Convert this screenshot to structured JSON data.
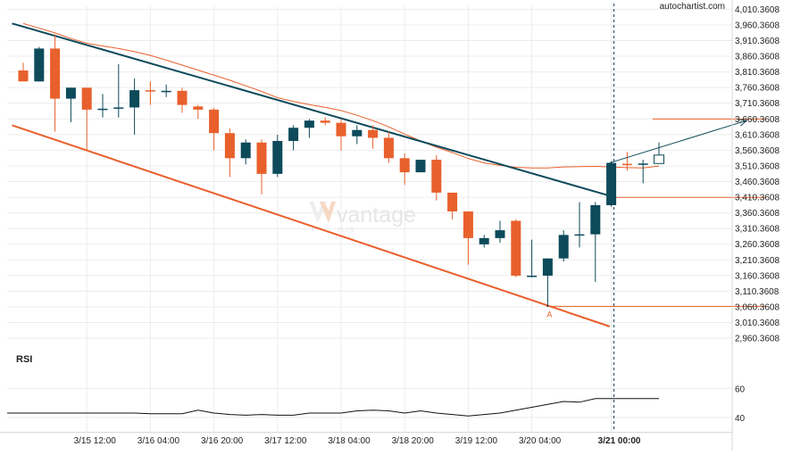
{
  "brand": {
    "site": "autochartist.com",
    "watermark": "vantage",
    "watermark_sub": "PLUS"
  },
  "colors": {
    "bull": "#0d4a5a",
    "bear": "#e8602c",
    "ma": "#e8602c",
    "trend_upper": "#0d4a5a",
    "trend_lower": "#e8602c",
    "grid": "#ececec",
    "text": "#222222"
  },
  "chart_data": {
    "type": "candlestick",
    "y_ticks": [
      "4,010.3608",
      "3,960.3608",
      "3,910.3608",
      "3,860.3608",
      "3,810.3608",
      "3,760.3608",
      "3,710.3608",
      "3,660.3608",
      "3,610.3608",
      "3,560.3608",
      "3,510.3608",
      "3,460.3608",
      "3,410.3608",
      "3,360.3608",
      "3,310.3608",
      "3,260.3608",
      "3,210.3608",
      "3,160.3608",
      "3,110.3608",
      "3,060.3608",
      "3,010.3608",
      "2,960.3608"
    ],
    "ylim": [
      2935,
      4020
    ],
    "x_ticks": [
      {
        "label": "3/15 12:00",
        "index": 4
      },
      {
        "label": "3/16 04:00",
        "index": 8
      },
      {
        "label": "3/16 20:00",
        "index": 12
      },
      {
        "label": "3/17 12:00",
        "index": 16
      },
      {
        "label": "3/18 04:00",
        "index": 20
      },
      {
        "label": "3/18 20:00",
        "index": 24
      },
      {
        "label": "3/19 12:00",
        "index": 28
      },
      {
        "label": "3/20 04:00",
        "index": 32
      },
      {
        "label": "3/21 00:00",
        "index": 37,
        "bold": true
      }
    ],
    "candles": [
      {
        "o": 3815,
        "h": 3840,
        "l": 3785,
        "c": 3780
      },
      {
        "o": 3780,
        "h": 3890,
        "l": 3780,
        "c": 3885
      },
      {
        "o": 3885,
        "h": 3930,
        "l": 3620,
        "c": 3725
      },
      {
        "o": 3725,
        "h": 3760,
        "l": 3650,
        "c": 3760
      },
      {
        "o": 3760,
        "h": 3760,
        "l": 3560,
        "c": 3690
      },
      {
        "o": 3690,
        "h": 3740,
        "l": 3665,
        "c": 3693
      },
      {
        "o": 3693,
        "h": 3835,
        "l": 3665,
        "c": 3697
      },
      {
        "o": 3697,
        "h": 3790,
        "l": 3610,
        "c": 3752
      },
      {
        "o": 3752,
        "h": 3780,
        "l": 3705,
        "c": 3748
      },
      {
        "o": 3748,
        "h": 3770,
        "l": 3730,
        "c": 3750
      },
      {
        "o": 3750,
        "h": 3760,
        "l": 3680,
        "c": 3705
      },
      {
        "o": 3700,
        "h": 3705,
        "l": 3660,
        "c": 3690
      },
      {
        "o": 3690,
        "h": 3695,
        "l": 3560,
        "c": 3615
      },
      {
        "o": 3615,
        "h": 3630,
        "l": 3475,
        "c": 3535
      },
      {
        "o": 3535,
        "h": 3595,
        "l": 3515,
        "c": 3585
      },
      {
        "o": 3585,
        "h": 3595,
        "l": 3420,
        "c": 3485
      },
      {
        "o": 3485,
        "h": 3610,
        "l": 3475,
        "c": 3590
      },
      {
        "o": 3590,
        "h": 3640,
        "l": 3560,
        "c": 3632
      },
      {
        "o": 3632,
        "h": 3660,
        "l": 3600,
        "c": 3655
      },
      {
        "o": 3655,
        "h": 3665,
        "l": 3640,
        "c": 3648
      },
      {
        "o": 3648,
        "h": 3660,
        "l": 3560,
        "c": 3605
      },
      {
        "o": 3605,
        "h": 3640,
        "l": 3580,
        "c": 3625
      },
      {
        "o": 3625,
        "h": 3640,
        "l": 3565,
        "c": 3600
      },
      {
        "o": 3600,
        "h": 3620,
        "l": 3520,
        "c": 3535
      },
      {
        "o": 3535,
        "h": 3550,
        "l": 3450,
        "c": 3490
      },
      {
        "o": 3490,
        "h": 3530,
        "l": 3490,
        "c": 3530
      },
      {
        "o": 3530,
        "h": 3545,
        "l": 3400,
        "c": 3425
      },
      {
        "o": 3425,
        "h": 3425,
        "l": 3340,
        "c": 3365
      },
      {
        "o": 3365,
        "h": 3365,
        "l": 3195,
        "c": 3280
      },
      {
        "o": 3260,
        "h": 3290,
        "l": 3250,
        "c": 3280
      },
      {
        "o": 3280,
        "h": 3335,
        "l": 3265,
        "c": 3305
      },
      {
        "o": 3335,
        "h": 3340,
        "l": 3155,
        "c": 3160
      },
      {
        "o": 3160,
        "h": 3275,
        "l": 3155,
        "c": 3160
      },
      {
        "o": 3160,
        "h": 3215,
        "l": 3060,
        "c": 3215
      },
      {
        "o": 3215,
        "h": 3305,
        "l": 3205,
        "c": 3290
      },
      {
        "o": 3290,
        "h": 3395,
        "l": 3250,
        "c": 3292
      },
      {
        "o": 3292,
        "h": 3395,
        "l": 3140,
        "c": 3385
      },
      {
        "o": 3385,
        "h": 3525,
        "l": 3380,
        "c": 3520
      },
      {
        "o": 3517,
        "h": 3555,
        "l": 3495,
        "c": 3515
      },
      {
        "o": 3515,
        "h": 3530,
        "l": 3455,
        "c": 3518
      },
      {
        "o": 3518,
        "h": 3585,
        "l": 3518,
        "c": 3545
      }
    ],
    "ma": [
      3965,
      3950,
      3935,
      3917,
      3902,
      3893,
      3885,
      3875,
      3863,
      3848,
      3832,
      3816,
      3800,
      3784,
      3766,
      3748,
      3728,
      3716,
      3706,
      3697,
      3687,
      3672,
      3655,
      3635,
      3612,
      3590,
      3570,
      3553,
      3534,
      3520,
      3512,
      3506,
      3504,
      3504,
      3507,
      3508,
      3509,
      3507,
      3505,
      3504,
      3510
    ],
    "trend_upper": {
      "from": {
        "index": -0.7,
        "value": 3965
      },
      "to": {
        "index": 36.9,
        "value": 3415
      }
    },
    "trend_lower": {
      "from": {
        "index": -0.7,
        "value": 3640
      },
      "to": {
        "index": 36.9,
        "value": 2998
      }
    },
    "levels": [
      {
        "value": 3660,
        "from_index": 39.6,
        "to_index": 46.7
      },
      {
        "value": 3410,
        "from_index": 36.9,
        "to_index": 46.7
      },
      {
        "value": 3062,
        "from_index": 32.9,
        "to_index": 46.7
      }
    ],
    "projection": {
      "from": {
        "index": 36.9,
        "value": 3520
      },
      "to": {
        "index": 45.5,
        "value": 3655
      }
    },
    "point_a": {
      "label": "A",
      "index": 33,
      "value": 3062
    },
    "current_index": 37,
    "rsi": {
      "title": "RSI",
      "ticks": [
        "60",
        "40"
      ],
      "ylim": [
        30,
        72
      ],
      "values": [
        43,
        43,
        43,
        43,
        43,
        43,
        43,
        43,
        42.5,
        42.5,
        42.5,
        45,
        43,
        42,
        41.5,
        42,
        41.5,
        41.5,
        43,
        43,
        43,
        44.5,
        45,
        44.5,
        43,
        44.5,
        43,
        42,
        41,
        42,
        43,
        45,
        47,
        49,
        51,
        50.5,
        53,
        53,
        53,
        53,
        53
      ]
    }
  }
}
